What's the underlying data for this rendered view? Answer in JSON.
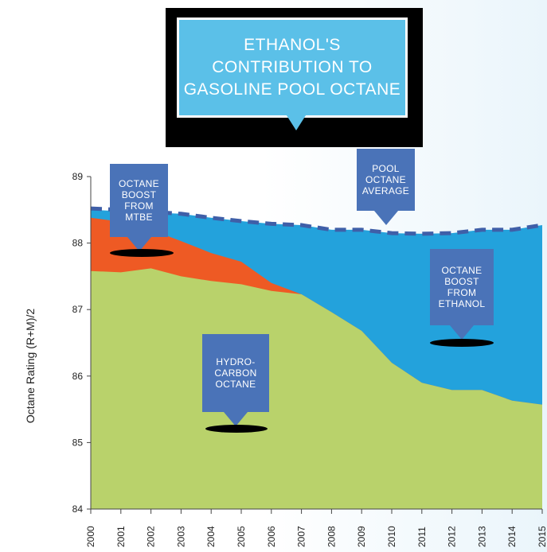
{
  "title": "ETHANOL'S\nCONTRIBUTION TO\nGASOLINE POOL OCTANE",
  "colors": {
    "hydrocarbon": "#b9d26b",
    "mtbe": "#ee5a24",
    "ethanol": "#23a2dc",
    "pool_line": "#3f5fa8",
    "callout": "#4a73b8",
    "title_box": "#5bc0e8"
  },
  "callouts": {
    "mtbe": "OCTANE\nBOOST\nFROM\nMTBE",
    "pool": "POOL\nOCTANE\nAVERAGE",
    "ethanol": "OCTANE\nBOOST\nFROM\nETHANOL",
    "hydrocarbon": "HYDRO-\nCARBON\nOCTANE"
  },
  "chart_data": {
    "type": "area",
    "xlabel": "",
    "ylabel": "Octane Rating\n(R+M)/2",
    "ylim": [
      84,
      89
    ],
    "yticks": [
      84,
      85,
      86,
      87,
      88,
      89
    ],
    "x": [
      2000,
      2001,
      2002,
      2003,
      2004,
      2005,
      2006,
      2007,
      2008,
      2009,
      2010,
      2011,
      2012,
      2013,
      2014,
      2015
    ],
    "series": [
      {
        "name": "HYDRO-CARBON OCTANE",
        "color": "#b9d26b",
        "values": [
          87.58,
          87.56,
          87.62,
          87.5,
          87.43,
          87.38,
          87.28,
          87.23,
          86.96,
          86.68,
          86.2,
          85.9,
          85.79,
          85.79,
          85.63,
          85.57
        ]
      },
      {
        "name": "OCTANE BOOST FROM MTBE",
        "color": "#ee5a24",
        "values": [
          88.38,
          88.32,
          88.2,
          88.03,
          87.85,
          87.72,
          87.4,
          87.23,
          86.96,
          86.68,
          86.2,
          85.9,
          85.79,
          85.79,
          85.63,
          85.57
        ]
      },
      {
        "name": "OCTANE BOOST FROM ETHANOL",
        "color": "#23a2dc",
        "values": [
          88.5,
          88.48,
          88.46,
          88.44,
          88.38,
          88.33,
          88.29,
          88.27,
          88.2,
          88.2,
          88.15,
          88.14,
          88.15,
          88.2,
          88.2,
          88.27
        ]
      },
      {
        "name": "POOL OCTANE AVERAGE",
        "color": "#3f5fa8",
        "values": [
          88.52,
          88.5,
          88.47,
          88.44,
          88.38,
          88.33,
          88.29,
          88.27,
          88.2,
          88.2,
          88.15,
          88.14,
          88.15,
          88.2,
          88.2,
          88.27
        ]
      }
    ]
  }
}
